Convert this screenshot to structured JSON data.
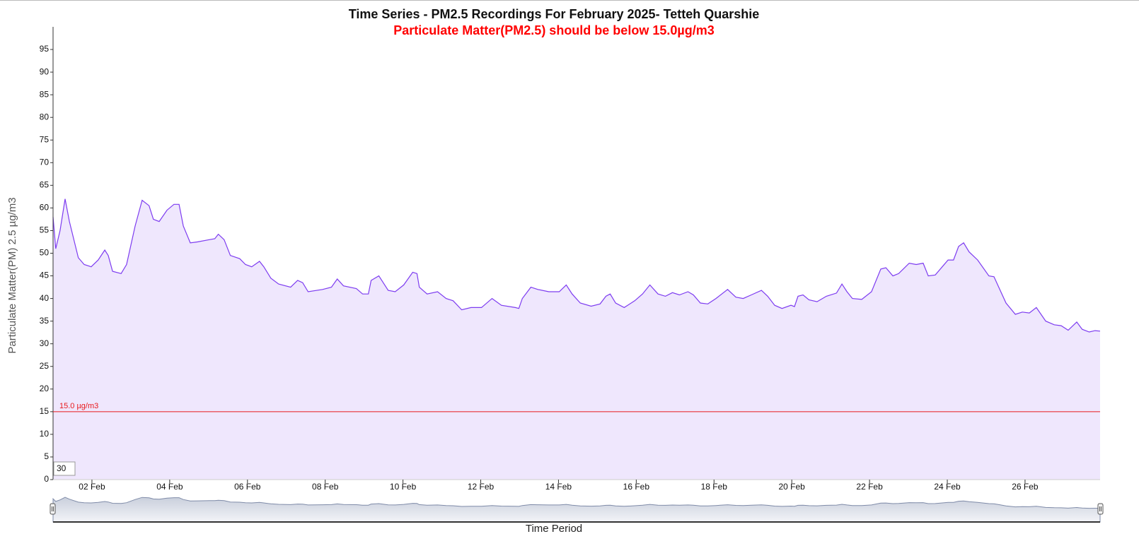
{
  "chart_data": {
    "type": "area",
    "title": "Time Series - PM2.5 Recordings For February 2025- Tetteh Quarshie",
    "subtitle": "Particulate Matter(PM2.5) should be below 15.0µg/m3",
    "y_axis_label": "Particulate Matter(PM) 2.5 µg/m3",
    "x_axis_label": "Time Period",
    "threshold": 15,
    "threshold_label": "15.0 µg/m3",
    "threshold_color": "#e8191c",
    "zoom_input": "30",
    "color": "#7d3cf0",
    "fill": "#efe7fd",
    "x": [
      1.0,
      1.07,
      1.18,
      1.31,
      1.42,
      1.65,
      1.8,
      1.98,
      2.16,
      2.33,
      2.42,
      2.53,
      2.75,
      2.89,
      3.11,
      3.29,
      3.47,
      3.58,
      3.73,
      3.93,
      4.11,
      4.24,
      4.35,
      4.53,
      4.71,
      5.02,
      5.16,
      5.25,
      5.4,
      5.56,
      5.8,
      5.95,
      6.11,
      6.31,
      6.42,
      6.6,
      6.8,
      7.11,
      7.29,
      7.42,
      7.56,
      7.93,
      8.16,
      8.31,
      8.47,
      8.8,
      8.96,
      9.11,
      9.18,
      9.38,
      9.62,
      9.8,
      10.02,
      10.25,
      10.36,
      10.42,
      10.62,
      10.89,
      11.11,
      11.29,
      11.51,
      11.75,
      12.02,
      12.29,
      12.53,
      12.89,
      12.98,
      13.07,
      13.29,
      13.47,
      13.75,
      14.02,
      14.2,
      14.35,
      14.56,
      14.84,
      15.07,
      15.22,
      15.33,
      15.47,
      15.69,
      15.96,
      16.16,
      16.35,
      16.56,
      16.75,
      16.93,
      17.11,
      17.33,
      17.47,
      17.65,
      17.84,
      18.05,
      18.35,
      18.56,
      18.75,
      18.96,
      19.22,
      19.38,
      19.56,
      19.75,
      19.98,
      20.07,
      20.16,
      20.29,
      20.44,
      20.65,
      20.89,
      21.15,
      21.29,
      21.42,
      21.56,
      21.8,
      22.05,
      22.29,
      22.42,
      22.6,
      22.75,
      23.02,
      23.2,
      23.38,
      23.51,
      23.69,
      23.87,
      24.02,
      24.16,
      24.29,
      24.42,
      24.56,
      24.78,
      25.07,
      25.2,
      25.35,
      25.51,
      25.75,
      25.93,
      26.11,
      26.29,
      26.53,
      26.75,
      26.93,
      27.11,
      27.33,
      27.47,
      27.65,
      27.8,
      27.93
    ],
    "values": [
      58,
      51,
      55,
      62,
      57,
      49,
      47.5,
      47,
      48.5,
      50.7,
      49.5,
      46,
      45.5,
      47.5,
      56,
      61.7,
      60.5,
      57.5,
      57,
      59.5,
      60.8,
      60.8,
      56,
      52.3,
      52.5,
      53,
      53.2,
      54.2,
      53,
      49.5,
      48.8,
      47.5,
      47,
      48.2,
      47,
      44.5,
      43.2,
      42.5,
      44,
      43.5,
      41.5,
      42,
      42.5,
      44.3,
      42.8,
      42.2,
      41,
      41,
      44,
      45,
      41.8,
      41.5,
      43,
      45.8,
      45.5,
      42.5,
      41,
      41.5,
      40,
      39.5,
      37.5,
      38,
      38,
      40,
      38.5,
      38,
      37.8,
      40,
      42.5,
      42,
      41.5,
      41.5,
      43,
      41,
      39,
      38.3,
      38.8,
      40.5,
      41,
      39,
      38,
      39.5,
      41,
      43,
      41,
      40.5,
      41.3,
      40.8,
      41.5,
      40.8,
      39,
      38.8,
      40,
      42,
      40.3,
      40,
      40.8,
      41.8,
      40.5,
      38.5,
      37.8,
      38.5,
      38.2,
      40.5,
      40.8,
      39.7,
      39.3,
      40.5,
      41.2,
      43.2,
      41.5,
      40,
      39.8,
      41.5,
      46.5,
      46.8,
      45,
      45.5,
      47.8,
      47.5,
      47.8,
      45,
      45.2,
      47,
      48.5,
      48.5,
      51.5,
      52.3,
      50.3,
      48.5,
      45,
      44.8,
      42,
      39,
      36.5,
      37,
      36.8,
      38,
      35,
      34.2,
      34,
      33,
      34.8,
      33.2,
      32.6,
      32.9,
      32.8
    ],
    "xlim": [
      1,
      27.93
    ],
    "xticks": [
      {
        "value": 2,
        "label": "02 Feb"
      },
      {
        "value": 4,
        "label": "04 Feb"
      },
      {
        "value": 6,
        "label": "06 Feb"
      },
      {
        "value": 8,
        "label": "08 Feb"
      },
      {
        "value": 10,
        "label": "10 Feb"
      },
      {
        "value": 12,
        "label": "12 Feb"
      },
      {
        "value": 14,
        "label": "14 Feb"
      },
      {
        "value": 16,
        "label": "16 Feb"
      },
      {
        "value": 18,
        "label": "18 Feb"
      },
      {
        "value": 20,
        "label": "20 Feb"
      },
      {
        "value": 22,
        "label": "22 Feb"
      },
      {
        "value": 24,
        "label": "24 Feb"
      },
      {
        "value": 26,
        "label": "26 Feb"
      }
    ],
    "ylim": [
      0,
      100
    ],
    "yticks": [
      0,
      5,
      10,
      15,
      20,
      25,
      30,
      35,
      40,
      45,
      50,
      55,
      60,
      65,
      70,
      75,
      80,
      85,
      90,
      95
    ],
    "grid": false
  }
}
